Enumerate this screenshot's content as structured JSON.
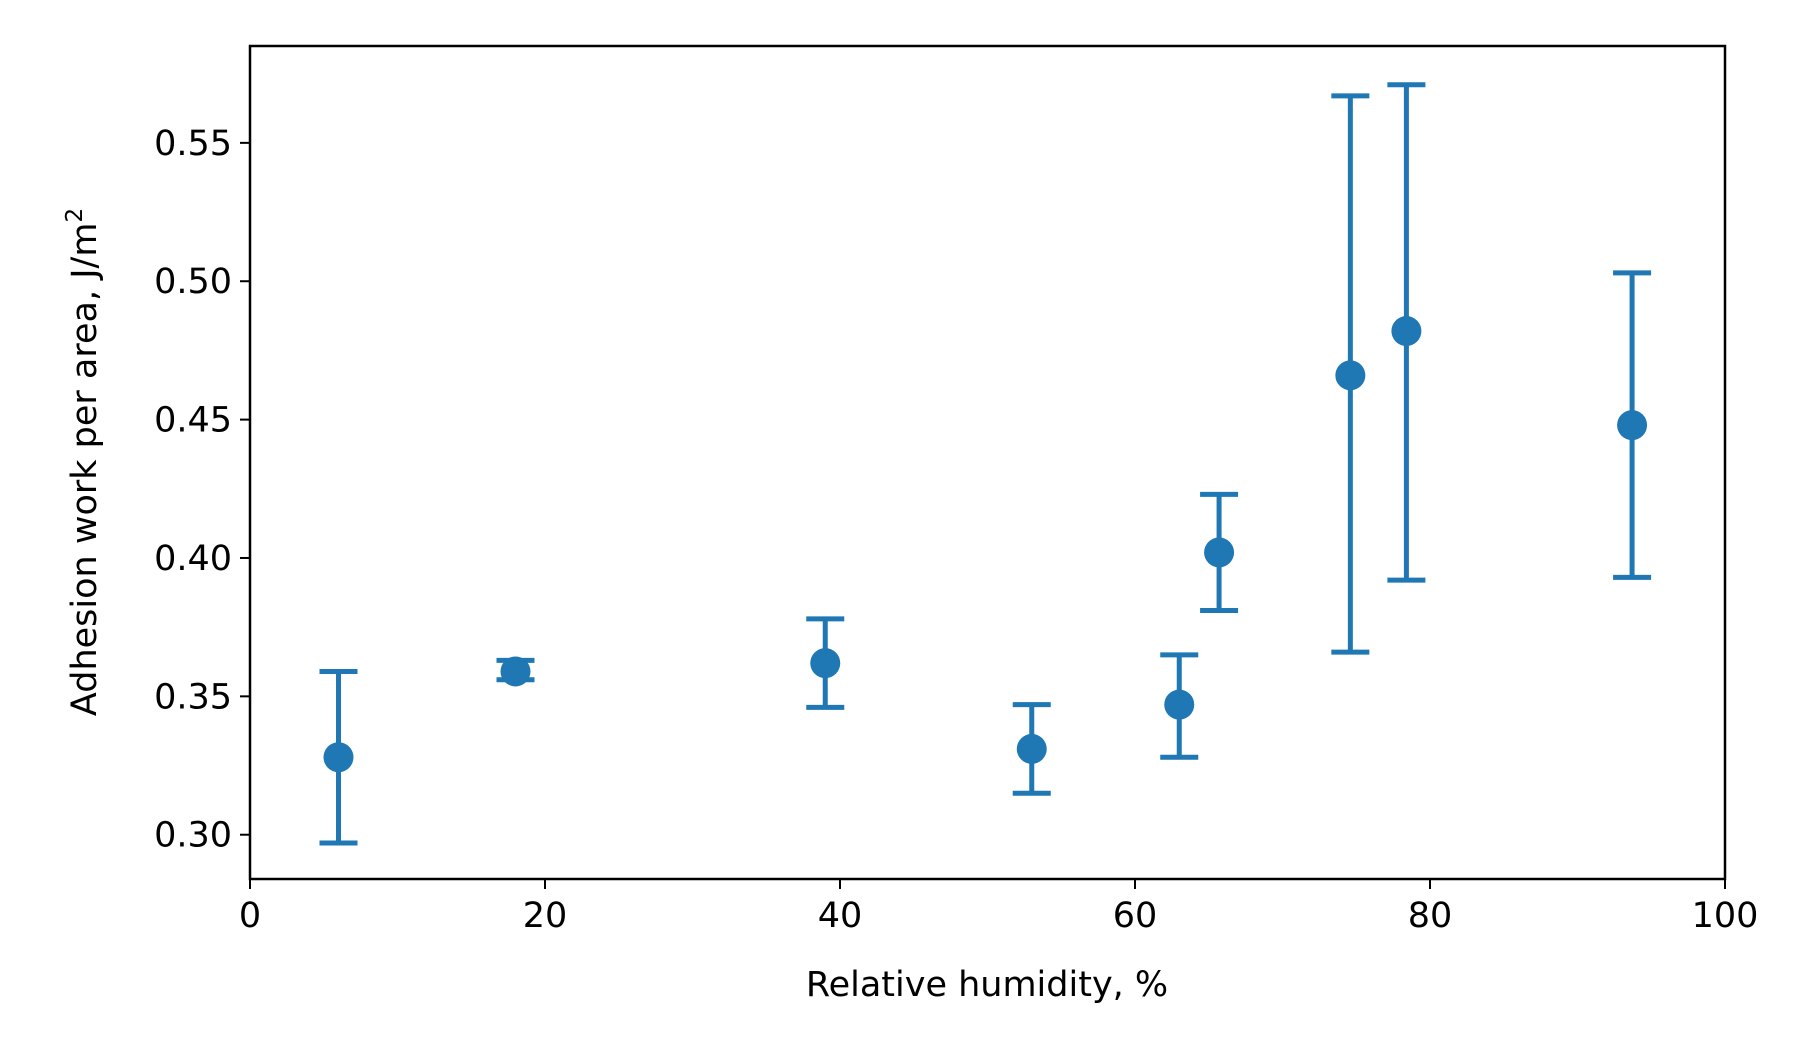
{
  "chart_data": {
    "type": "scatter",
    "title": "",
    "xlabel": "Relative humidity, %",
    "ylabel": "Adhesion work per area, J/m",
    "ylabel_superscript": "2",
    "xlim": [
      0,
      100
    ],
    "ylim": [
      0.284,
      0.585
    ],
    "xticks": [
      0,
      20,
      40,
      60,
      80,
      100
    ],
    "yticks": [
      0.3,
      0.35,
      0.4,
      0.45,
      0.5,
      0.55
    ],
    "xtick_labels": [
      "0",
      "20",
      "40",
      "60",
      "80",
      "100"
    ],
    "ytick_labels": [
      "0.30",
      "0.35",
      "0.40",
      "0.45",
      "0.50",
      "0.55"
    ],
    "grid": false,
    "color": "#1f77b4",
    "points": [
      {
        "x": 6.0,
        "y": 0.328,
        "ylow": 0.297,
        "yhigh": 0.359
      },
      {
        "x": 18.0,
        "y": 0.359,
        "ylow": 0.356,
        "yhigh": 0.363
      },
      {
        "x": 39.0,
        "y": 0.362,
        "ylow": 0.346,
        "yhigh": 0.378
      },
      {
        "x": 53.0,
        "y": 0.331,
        "ylow": 0.315,
        "yhigh": 0.347
      },
      {
        "x": 63.0,
        "y": 0.347,
        "ylow": 0.328,
        "yhigh": 0.365
      },
      {
        "x": 65.7,
        "y": 0.402,
        "ylow": 0.381,
        "yhigh": 0.423
      },
      {
        "x": 74.6,
        "y": 0.466,
        "ylow": 0.366,
        "yhigh": 0.567
      },
      {
        "x": 78.4,
        "y": 0.482,
        "ylow": 0.392,
        "yhigh": 0.571
      },
      {
        "x": 93.7,
        "y": 0.448,
        "ylow": 0.393,
        "yhigh": 0.503
      }
    ]
  }
}
